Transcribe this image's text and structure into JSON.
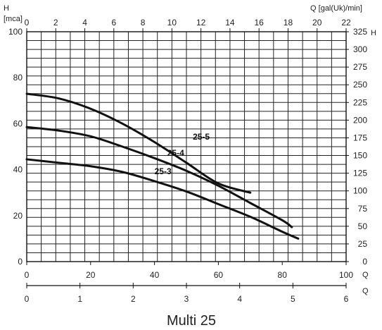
{
  "chart_data": {
    "type": "line",
    "title": "Multi 25",
    "xlabel": "Q",
    "ylabel": "H",
    "ylabel_unit": "[mca]",
    "x_range": [
      0,
      100
    ],
    "y_range": [
      0,
      100
    ],
    "x_ticks": [
      0,
      20,
      40,
      60,
      80,
      100
    ],
    "y_ticks": [
      0,
      20,
      40,
      60,
      80,
      100
    ],
    "grid": true,
    "top_axis": {
      "label": "Q [gal(Uk)/min]",
      "range": [
        0,
        22
      ],
      "ticks": [
        0,
        2,
        4,
        6,
        8,
        10,
        12,
        14,
        16,
        18,
        20,
        22
      ]
    },
    "right_axis": {
      "label": "H",
      "range": [
        0,
        325
      ],
      "ticks": [
        0,
        25,
        50,
        75,
        100,
        125,
        150,
        175,
        200,
        225,
        250,
        275,
        300,
        325
      ]
    },
    "bottom_axis2": {
      "label": "Q",
      "range": [
        0,
        6
      ],
      "ticks": [
        0,
        1,
        2,
        3,
        4,
        5,
        6
      ]
    },
    "series": [
      {
        "name": "25-5",
        "x": [
          0,
          10,
          20,
          30,
          40,
          50,
          60,
          70
        ],
        "y": [
          73,
          71,
          66.5,
          60,
          52,
          43,
          34,
          30
        ],
        "label_at": [
          52,
          53
        ]
      },
      {
        "name": "25-4",
        "x": [
          0,
          10,
          20,
          30,
          40,
          50,
          60,
          70,
          80,
          83
        ],
        "y": [
          58.5,
          57,
          54.5,
          50,
          45,
          39.5,
          33,
          25.5,
          18,
          15
        ],
        "label_at": [
          44,
          46
        ]
      },
      {
        "name": "25-3",
        "x": [
          0,
          10,
          20,
          30,
          40,
          50,
          60,
          70,
          80,
          85
        ],
        "y": [
          44.5,
          43,
          41.5,
          39,
          35,
          30.5,
          25,
          19.5,
          13,
          10
        ],
        "label_at": [
          40,
          38
        ]
      }
    ]
  }
}
